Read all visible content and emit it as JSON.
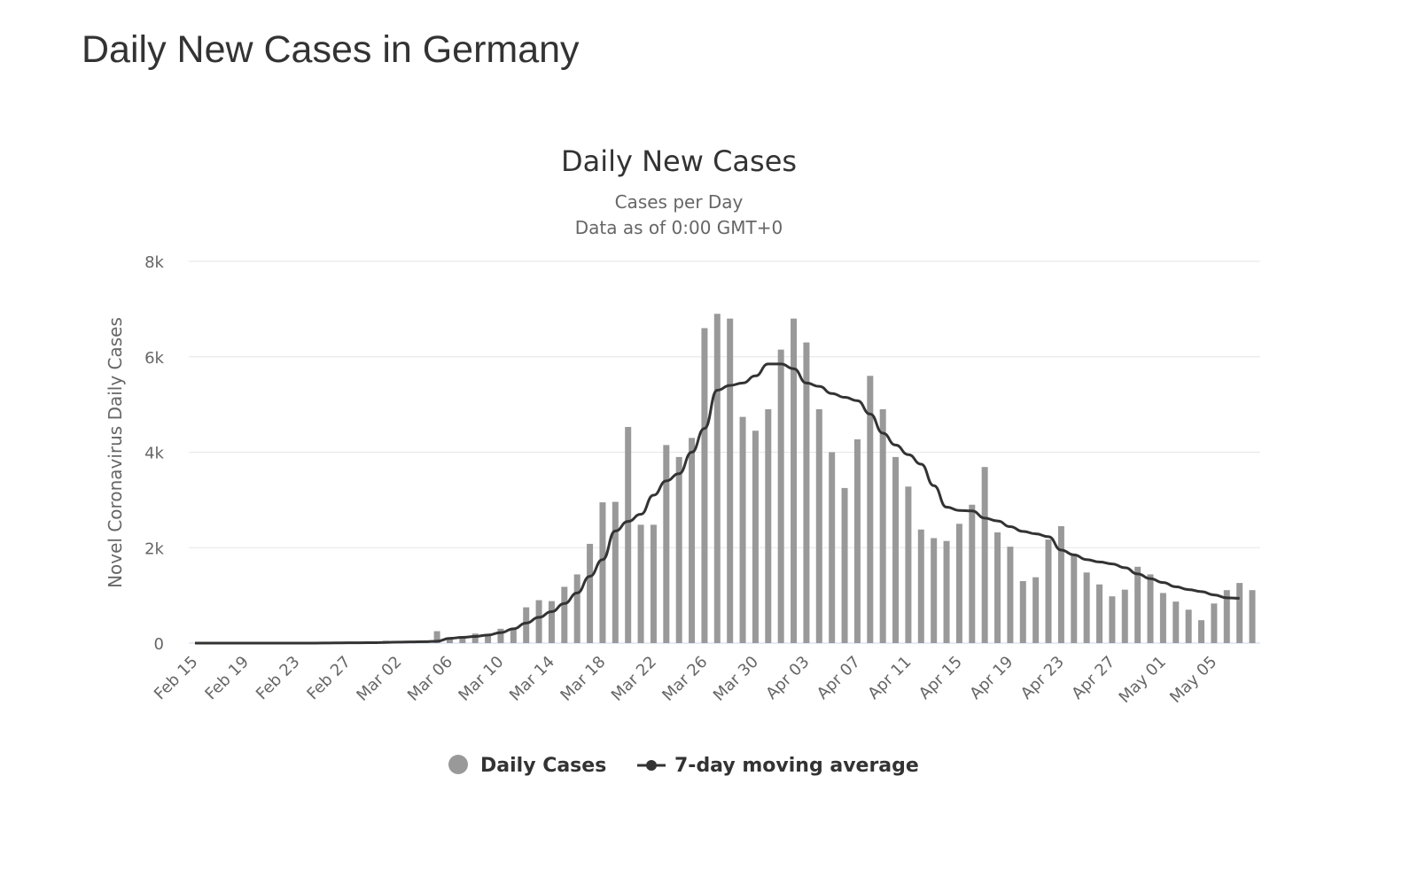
{
  "page_title": "Daily New Cases in Germany",
  "chart_data": {
    "type": "bar",
    "title": "Daily New Cases",
    "subtitle": "Cases per Day",
    "subtitle2": "Data as of 0:00 GMT+0",
    "ylabel": "Novel Coronavirus Daily Cases",
    "xlabel": "",
    "ylim": [
      0,
      8000
    ],
    "yticks": [
      {
        "v": 0,
        "label": "0"
      },
      {
        "v": 2000,
        "label": "2k"
      },
      {
        "v": 4000,
        "label": "4k"
      },
      {
        "v": 6000,
        "label": "6k"
      },
      {
        "v": 8000,
        "label": "8k"
      }
    ],
    "grid": true,
    "legend_position": "bottom",
    "start_date": "Feb 15",
    "end_date": "May 08",
    "xtick_labels": [
      "Feb 15",
      "Feb 19",
      "Feb 23",
      "Feb 27",
      "Mar 02",
      "Mar 06",
      "Mar 10",
      "Mar 14",
      "Mar 18",
      "Mar 22",
      "Mar 26",
      "Mar 30",
      "Apr 03",
      "Apr 07",
      "Apr 11",
      "Apr 15",
      "Apr 19",
      "Apr 23",
      "Apr 27",
      "May 01",
      "May 05"
    ],
    "xtick_every_days": 4,
    "series": [
      {
        "name": "Daily Cases",
        "type": "bar",
        "color": "#999999",
        "values": [
          0,
          0,
          0,
          0,
          0,
          0,
          0,
          0,
          0,
          0,
          2,
          10,
          20,
          3,
          21,
          49,
          29,
          30,
          49,
          250,
          120,
          140,
          200,
          150,
          300,
          280,
          750,
          900,
          880,
          1180,
          1440,
          2080,
          2950,
          2960,
          4530,
          2480,
          2480,
          4150,
          3900,
          4300,
          6600,
          6900,
          6800,
          4740,
          4450,
          4900,
          6150,
          6800,
          6300,
          4900,
          4000,
          3250,
          4270,
          5600,
          4900,
          3900,
          3280,
          2380,
          2200,
          2140,
          2500,
          2900,
          3690,
          2320,
          2020,
          1300,
          1380,
          2170,
          2450,
          1850,
          1480,
          1230,
          980,
          1120,
          1600,
          1440,
          1050,
          870,
          700,
          480,
          830,
          1110,
          1260,
          1110
        ]
      },
      {
        "name": "7-day moving average",
        "type": "line",
        "color": "#333333",
        "values": [
          0,
          0,
          0,
          0,
          0,
          0,
          0,
          0,
          0,
          0,
          2,
          4,
          7,
          7,
          10,
          15,
          20,
          25,
          30,
          40,
          100,
          120,
          140,
          170,
          220,
          300,
          420,
          540,
          660,
          830,
          1050,
          1400,
          1750,
          2350,
          2550,
          2700,
          3100,
          3400,
          3550,
          4000,
          4500,
          5300,
          5400,
          5450,
          5600,
          5850,
          5850,
          5750,
          5450,
          5380,
          5230,
          5150,
          5080,
          4800,
          4400,
          4150,
          3950,
          3750,
          3300,
          2850,
          2780,
          2770,
          2620,
          2560,
          2440,
          2340,
          2290,
          2230,
          1950,
          1850,
          1750,
          1700,
          1660,
          1580,
          1450,
          1350,
          1270,
          1180,
          1120,
          1080,
          1010,
          950,
          940,
          null
        ]
      }
    ]
  }
}
